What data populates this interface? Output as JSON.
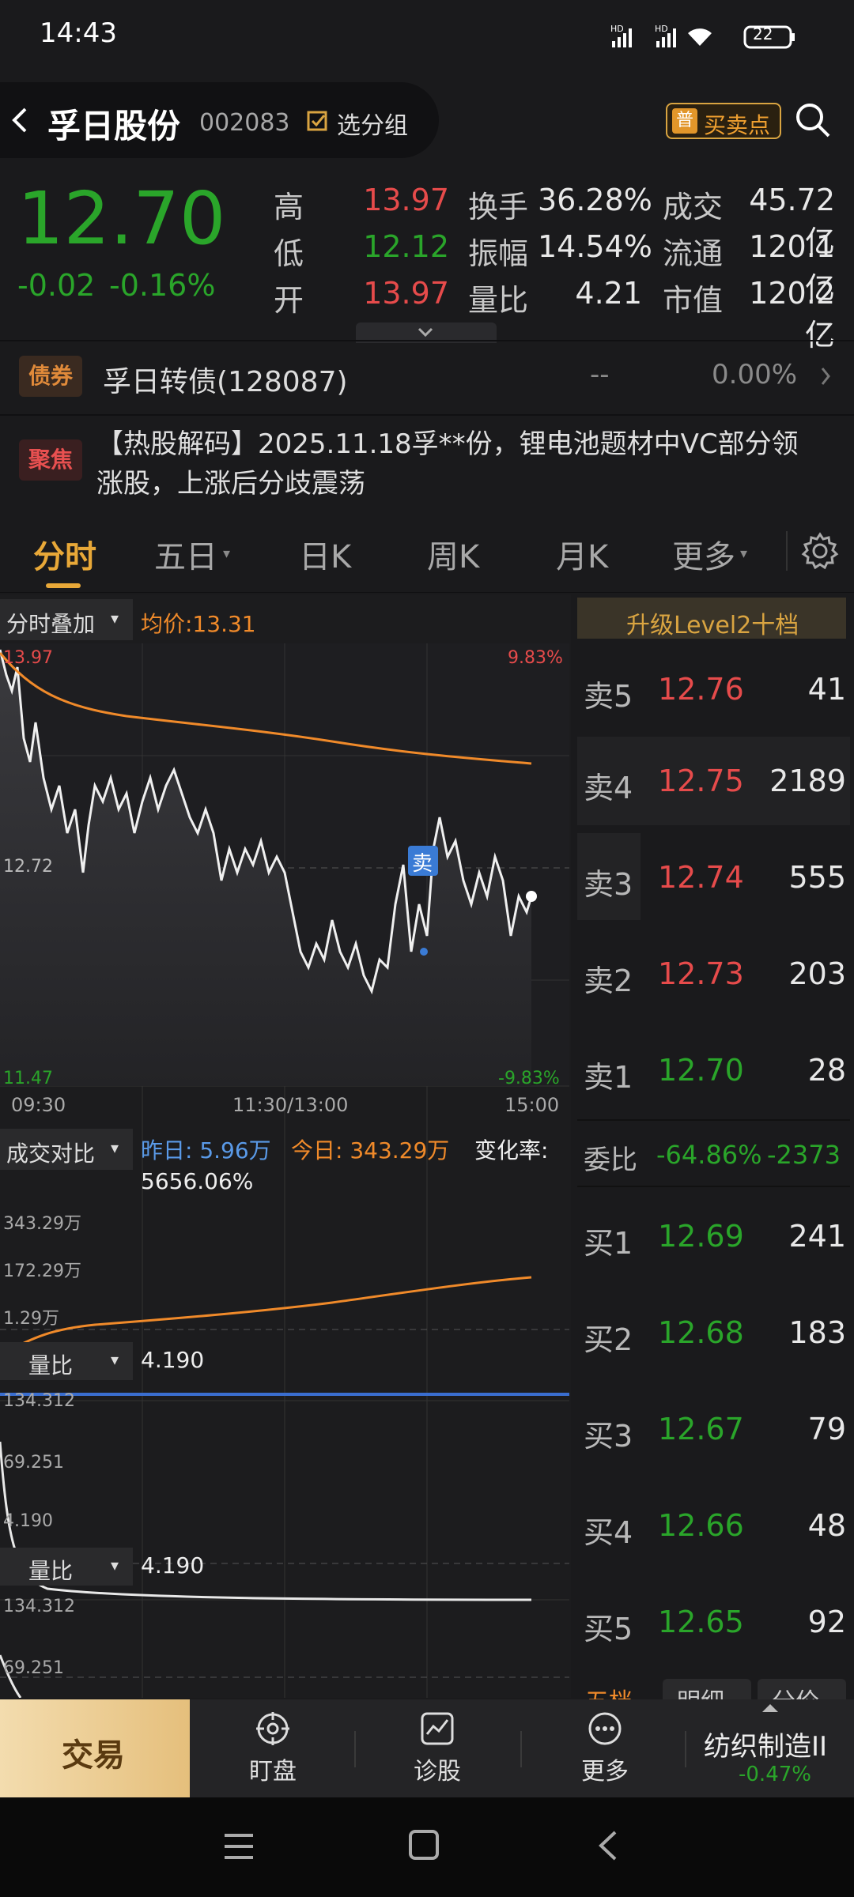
{
  "status": {
    "time": "14:43",
    "battery": "22",
    "network": [
      "HD",
      "HD"
    ]
  },
  "header": {
    "stock_name": "孚日股份",
    "stock_code": "002083",
    "group_label": "选分组",
    "buysell_label": "买卖点",
    "buysell_badge": "普"
  },
  "quote": {
    "price": "12.70",
    "change": "-0.02",
    "change_pct": "-0.16%",
    "high_label": "高",
    "high": "13.97",
    "low_label": "低",
    "low": "12.12",
    "open_label": "开",
    "open": "13.97",
    "turnover_label": "换手",
    "turnover": "36.28%",
    "amplitude_label": "振幅",
    "amplitude": "14.54%",
    "vol_ratio_label": "量比",
    "vol_ratio": "4.21",
    "deal_label": "成交",
    "deal": "45.72亿",
    "float_label": "流通",
    "float": "120.1亿",
    "mcap_label": "市值",
    "mcap": "120.2亿"
  },
  "bond": {
    "badge": "债券",
    "name": "孚日转债(128087)",
    "price": "--",
    "pct": "0.00%"
  },
  "news": {
    "badge": "聚焦",
    "text_line1": "【热股解码】2025.11.18孚**份，锂电池题材中VC部分领",
    "text_line2": "涨股，上涨后分歧震荡"
  },
  "tabs": [
    "分时",
    "五日",
    "日K",
    "周K",
    "月K",
    "更多"
  ],
  "chart": {
    "overlay_label": "分时叠加",
    "avg_label": "均价:13.31",
    "top_price": "13.97",
    "top_pct": "9.83%",
    "mid_price": "12.72",
    "bottom_price": "11.47",
    "bottom_pct": "-9.83%",
    "times": [
      "09:30",
      "11:30/13:00",
      "15:00"
    ],
    "sell_marker": "卖"
  },
  "volume_compare": {
    "label": "成交对比",
    "yesterday": "昨日: 5.96万",
    "today": "今日: 343.29万",
    "change_label": "变化率:",
    "change_value": "5656.06%",
    "ticks": [
      "343.29万",
      "172.29万",
      "1.29万"
    ]
  },
  "ratio_panel_1": {
    "label": "量比",
    "value": "4.190",
    "ticks": [
      "134.312",
      "69.251",
      "4.190"
    ]
  },
  "ratio_panel_2": {
    "label": "量比",
    "value": "4.190",
    "ticks": [
      "134.312",
      "69.251"
    ]
  },
  "orderbook": {
    "upgrade": "升级Level2十档",
    "asks": [
      {
        "label": "卖5",
        "price": "12.76",
        "vol": "41"
      },
      {
        "label": "卖4",
        "price": "12.75",
        "vol": "2189"
      },
      {
        "label": "卖3",
        "price": "12.74",
        "vol": "555"
      },
      {
        "label": "卖2",
        "price": "12.73",
        "vol": "203"
      },
      {
        "label": "卖1",
        "price": "12.70",
        "vol": "28"
      }
    ],
    "ratio_label": "委比",
    "ratio_value": "-64.86%",
    "ratio_diff": "-2373",
    "bids": [
      {
        "label": "买1",
        "price": "12.69",
        "vol": "241"
      },
      {
        "label": "买2",
        "price": "12.68",
        "vol": "183"
      },
      {
        "label": "买3",
        "price": "12.67",
        "vol": "79"
      },
      {
        "label": "买4",
        "price": "12.66",
        "vol": "48"
      },
      {
        "label": "买5",
        "price": "12.65",
        "vol": "92"
      }
    ],
    "bottom_tabs": [
      "五档",
      "明细",
      "分价"
    ]
  },
  "bottom_bar": {
    "trade": "交易",
    "watch": "盯盘",
    "diagnose": "诊股",
    "more": "更多",
    "sector": "纺织制造II",
    "sector_pct": "-0.47%"
  },
  "colors": {
    "up": "#e64b4b",
    "down": "#2aa52a",
    "avg_line": "#f08a2a",
    "accent": "#d9a441"
  }
}
